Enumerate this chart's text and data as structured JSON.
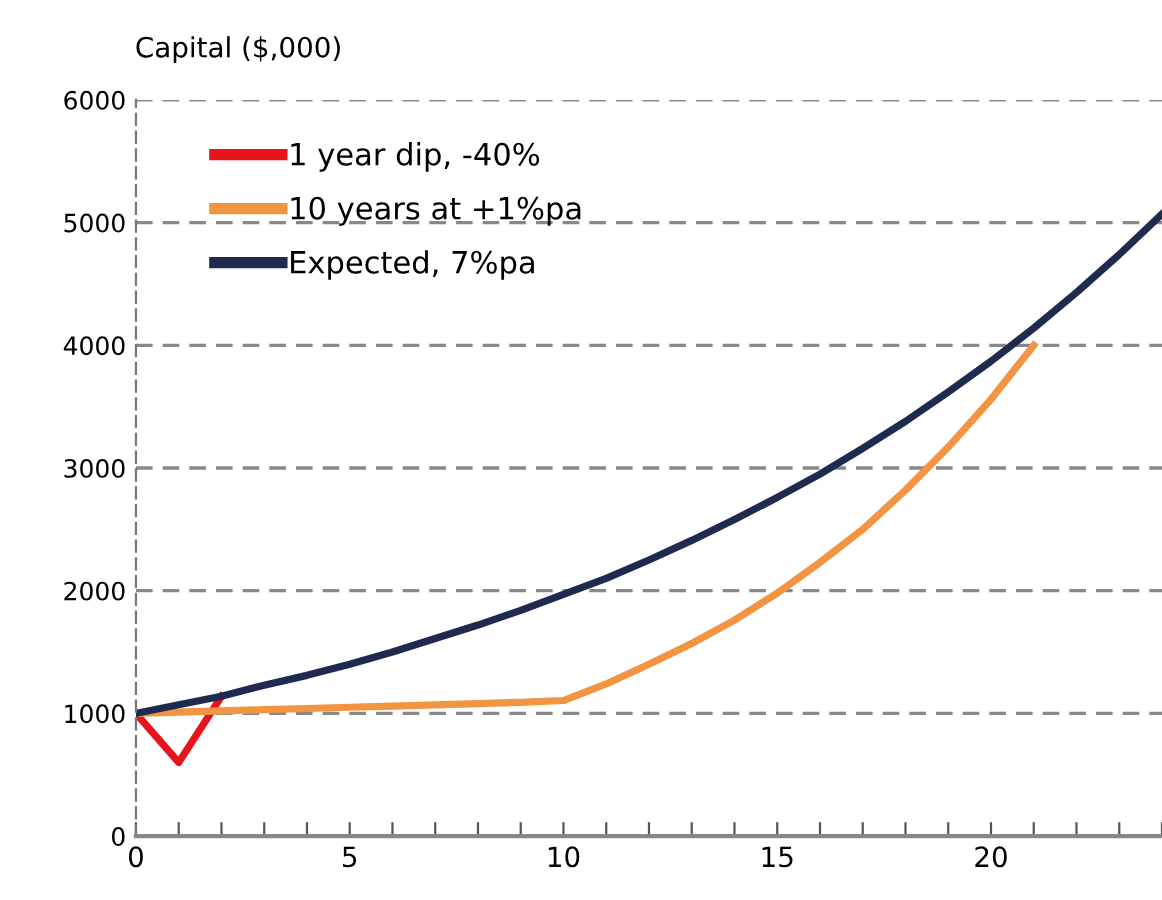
{
  "chart_data": {
    "type": "line",
    "ylabel": "Capital ($,000)",
    "xlim": [
      0,
      24
    ],
    "ylim": [
      0,
      6000
    ],
    "xticks": [
      0,
      {
        "value": 1,
        "label": null
      },
      {
        "value": 2,
        "label": null
      },
      {
        "value": 3,
        "label": null
      },
      {
        "value": 4,
        "label": null
      },
      5,
      {
        "value": 6,
        "label": null
      },
      {
        "value": 7,
        "label": null
      },
      {
        "value": 8,
        "label": null
      },
      {
        "value": 9,
        "label": null
      },
      10,
      {
        "value": 11,
        "label": null
      },
      {
        "value": 12,
        "label": null
      },
      {
        "value": 13,
        "label": null
      },
      {
        "value": 14,
        "label": null
      },
      15,
      {
        "value": 16,
        "label": null
      },
      {
        "value": 17,
        "label": null
      },
      {
        "value": 18,
        "label": null
      },
      {
        "value": 19,
        "label": null
      },
      20,
      {
        "value": 21,
        "label": null
      },
      {
        "value": 22,
        "label": null
      },
      {
        "value": 23,
        "label": null
      },
      {
        "value": 24,
        "label": null
      }
    ],
    "yticks": [
      0,
      1000,
      2000,
      3000,
      4000,
      5000,
      6000
    ],
    "grid": "y",
    "legend": "top left",
    "marker": "none",
    "line_style": "solid",
    "series": [
      {
        "name": "1 year dip, -40%",
        "color": "#e8141c",
        "x": [
          0,
          1,
          2
        ],
        "values": [
          1000,
          600,
          1140
        ]
      },
      {
        "name": "10 years at +1%pa",
        "color": "#f39443",
        "x": [
          0,
          1,
          2,
          3,
          4,
          5,
          6,
          7,
          8,
          9,
          10,
          11,
          12,
          13,
          14,
          15,
          16,
          17,
          18,
          19,
          20,
          21
        ],
        "values": [
          1000,
          1010,
          1020,
          1030,
          1040,
          1050,
          1060,
          1070,
          1080,
          1090,
          1105,
          1240,
          1400,
          1570,
          1760,
          1980,
          2230,
          2500,
          2820,
          3170,
          3560,
          4000
        ]
      },
      {
        "name": "Expected, 7%pa",
        "color": "#1f2a4f",
        "x": [
          0,
          1,
          2,
          3,
          4,
          5,
          6,
          7,
          8,
          9,
          10,
          11,
          12,
          13,
          14,
          15,
          16,
          17,
          18,
          19,
          20,
          21,
          22,
          23,
          24
        ],
        "values": [
          1000,
          1070,
          1140,
          1230,
          1310,
          1400,
          1500,
          1610,
          1720,
          1840,
          1970,
          2100,
          2250,
          2410,
          2580,
          2760,
          2950,
          3160,
          3380,
          3620,
          3870,
          4140,
          4430,
          4740,
          5070
        ]
      }
    ]
  }
}
